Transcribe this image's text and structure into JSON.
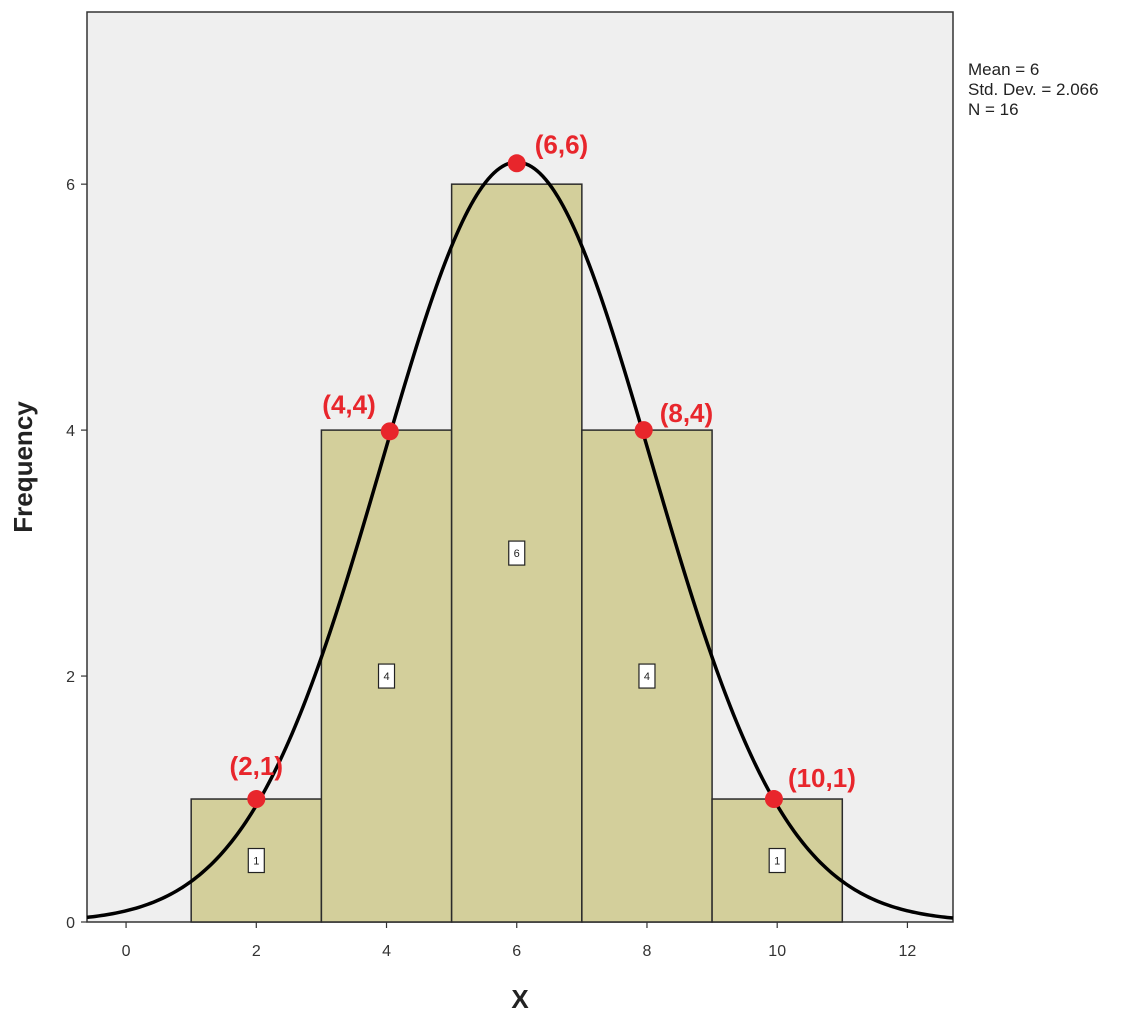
{
  "chart_data": {
    "type": "bar",
    "xlabel": "X",
    "ylabel": "Frequency",
    "xlim": [
      -0.6,
      12.7
    ],
    "ylim": [
      0,
      7.4
    ],
    "x_ticks": [
      "0",
      "2",
      "4",
      "6",
      "8",
      "10",
      "12"
    ],
    "y_ticks": [
      "0",
      "2",
      "4",
      "6"
    ],
    "bins": [
      {
        "start": 1,
        "end": 3,
        "value": 1,
        "label": "1"
      },
      {
        "start": 3,
        "end": 5,
        "value": 4,
        "label": "4"
      },
      {
        "start": 5,
        "end": 7,
        "value": 6,
        "label": "6"
      },
      {
        "start": 7,
        "end": 9,
        "value": 4,
        "label": "4"
      },
      {
        "start": 9,
        "end": 11,
        "value": 1,
        "label": "1"
      }
    ],
    "normal_curve": {
      "mean": 6,
      "sd": 2.066,
      "n": 16,
      "bin_width": 2
    },
    "stats": [
      "Mean = 6",
      "Std. Dev. = 2.066",
      "N = 16"
    ],
    "annotations": [
      {
        "x": 2,
        "y": 1,
        "text": "(2,1)"
      },
      {
        "x": 4.05,
        "y": 3.99,
        "text": "(4,4)"
      },
      {
        "x": 6,
        "y": 6.17,
        "text": "(6,6)"
      },
      {
        "x": 7.95,
        "y": 4,
        "text": "(8,4)"
      },
      {
        "x": 9.95,
        "y": 1,
        "text": "(10,1)"
      }
    ],
    "grid": false
  },
  "colors": {
    "plot_background": "#efefef",
    "bar_fill": "#d3cf9b",
    "bar_stroke": "#2b2b2b",
    "curve": "#000000",
    "annotation": "#e8262c"
  }
}
